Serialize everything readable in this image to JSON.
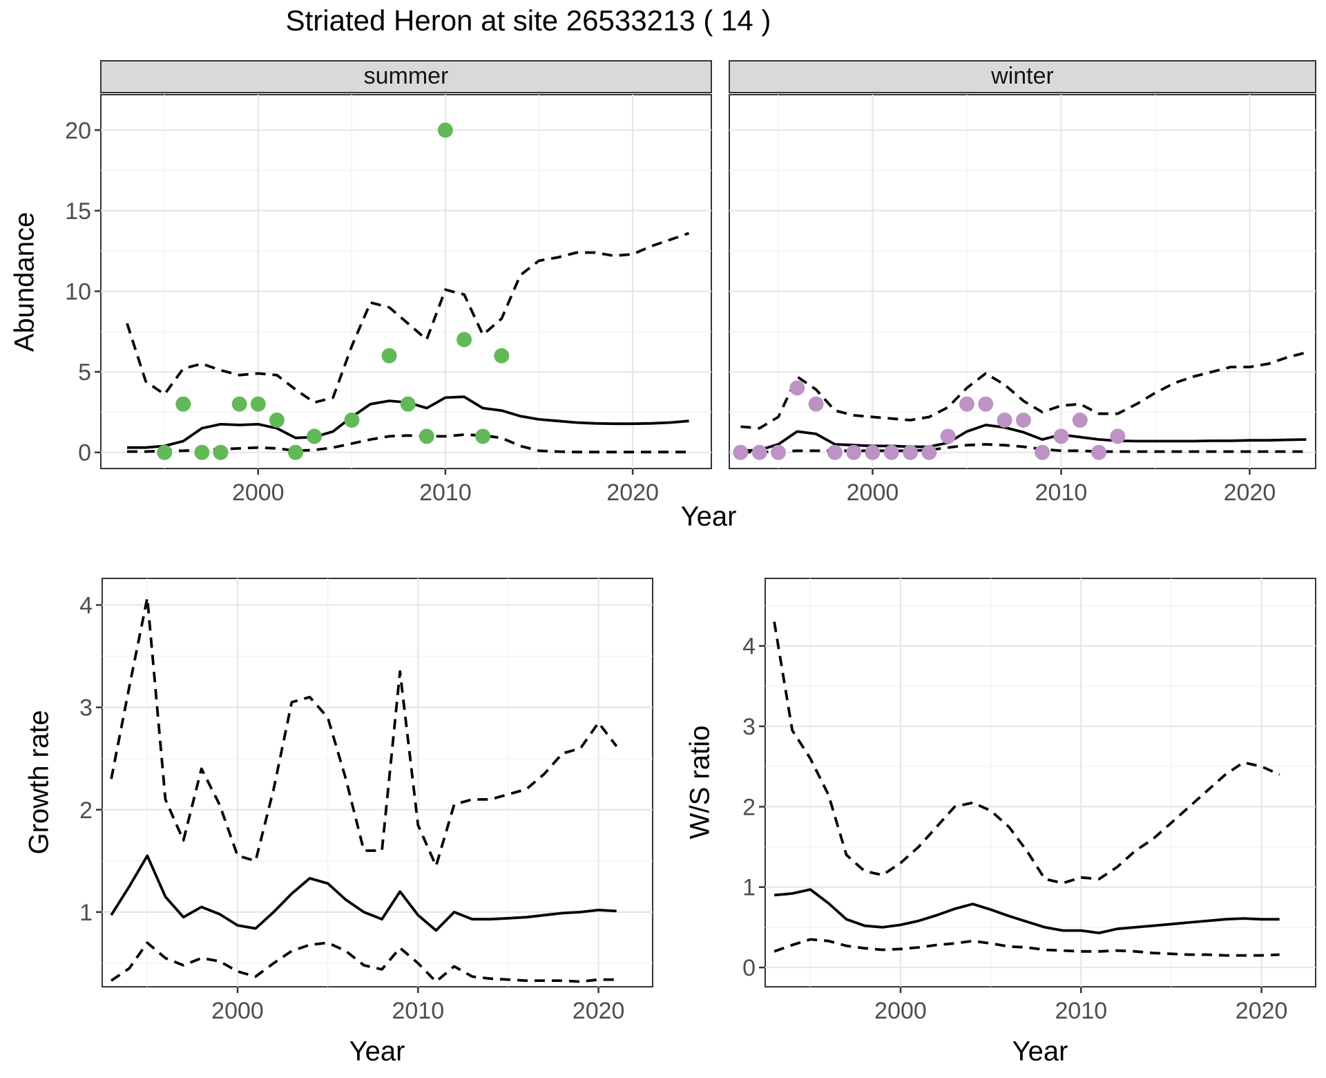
{
  "title": "Striated Heron at site 26533213 ( 14 )",
  "style": {
    "background": "#FFFFFF",
    "panel_border": "#333333",
    "strip_bg": "#D9D9D9",
    "strip_text_color": "#141414",
    "grid_major": "#E6E6E6",
    "grid_minor": "#F2F2F2",
    "tick_text_color": "#4D4D4D",
    "line_color": "#000000",
    "summer_point_color": "#63B858",
    "winter_point_color": "#BD93C6"
  },
  "chart_data": [
    {
      "type": "line+scatter",
      "facet": "summer",
      "ylabel": "Abundance",
      "xlabel": "Year",
      "point_color": "#63B858",
      "legend": "none",
      "grid": "on",
      "xlim": [
        1991.6,
        2024.2
      ],
      "ylim": [
        -1.0,
        22.2
      ],
      "x_ticks": {
        "labels": [
          "2000",
          "2010",
          "2020"
        ],
        "years": [
          2000,
          2010,
          2020
        ],
        "minor": [
          1995,
          2005,
          2015
        ]
      },
      "y_ticks": {
        "labels": [
          "0",
          "5",
          "10",
          "15",
          "20"
        ],
        "values": [
          0,
          5,
          10,
          15,
          20
        ],
        "minor": [
          2.5,
          7.5,
          12.5,
          17.5
        ]
      },
      "years": [
        1993,
        1994,
        1995,
        1996,
        1997,
        1998,
        1999,
        2000,
        2001,
        2002,
        2003,
        2004,
        2005,
        2006,
        2007,
        2008,
        2009,
        2010,
        2011,
        2012,
        2013,
        2014,
        2015,
        2016,
        2017,
        2018,
        2019,
        2020,
        2021,
        2022,
        2023
      ],
      "series": [
        {
          "name": "median (solid)",
          "style": "solid",
          "values": [
            0.3,
            0.3,
            0.4,
            0.7,
            1.5,
            1.75,
            1.7,
            1.75,
            1.5,
            0.9,
            0.95,
            1.3,
            2.2,
            3.0,
            3.2,
            3.1,
            2.75,
            3.4,
            3.45,
            2.75,
            2.6,
            2.25,
            2.05,
            1.95,
            1.85,
            1.8,
            1.78,
            1.78,
            1.8,
            1.85,
            1.95
          ]
        },
        {
          "name": "upper 95% CI (dashed)",
          "style": "dashed",
          "values": [
            8.0,
            4.4,
            3.6,
            5.2,
            5.5,
            5.1,
            4.8,
            4.9,
            4.8,
            3.9,
            3.1,
            3.4,
            6.6,
            9.3,
            9.0,
            8.0,
            7.0,
            10.1,
            9.8,
            7.3,
            8.3,
            11.0,
            11.9,
            12.1,
            12.4,
            12.4,
            12.2,
            12.3,
            12.8,
            13.2,
            13.6
          ]
        },
        {
          "name": "lower 95% CI (dashed)",
          "style": "dashed",
          "values": [
            0.05,
            0.05,
            0.1,
            0.1,
            0.15,
            0.2,
            0.25,
            0.3,
            0.25,
            0.1,
            0.15,
            0.3,
            0.55,
            0.8,
            1.0,
            1.05,
            1.0,
            1.0,
            1.1,
            1.05,
            0.9,
            0.4,
            0.1,
            0.05,
            0.02,
            0.02,
            0.02,
            0.02,
            0.02,
            0.02,
            0.02
          ]
        }
      ],
      "points": {
        "years": [
          1995,
          1996,
          1997,
          1998,
          1999,
          2000,
          2001,
          2002,
          2003,
          2005,
          2007,
          2008,
          2009,
          2010,
          2011,
          2012,
          2013
        ],
        "values": [
          0,
          3,
          0,
          0,
          3,
          3,
          2,
          0,
          1,
          2,
          6,
          3,
          1,
          20,
          7,
          1,
          6
        ]
      }
    },
    {
      "type": "line+scatter",
      "facet": "winter",
      "ylabel": "Abundance",
      "xlabel": "Year",
      "point_color": "#BD93C6",
      "legend": "none",
      "grid": "on",
      "xlim": [
        1992.4,
        2023.5
      ],
      "ylim": [
        -1.0,
        22.2
      ],
      "x_ticks": {
        "labels": [
          "2000",
          "2010",
          "2020"
        ],
        "years": [
          2000,
          2010,
          2020
        ],
        "minor": [
          1995,
          2005,
          2015
        ]
      },
      "y_ticks": {
        "labels": [],
        "values": [
          0,
          5,
          10,
          15,
          20
        ],
        "minor": [
          2.5,
          7.5,
          12.5,
          17.5
        ]
      },
      "years": [
        1993,
        1994,
        1995,
        1996,
        1997,
        1998,
        1999,
        2000,
        2001,
        2002,
        2003,
        2004,
        2005,
        2006,
        2007,
        2008,
        2009,
        2010,
        2011,
        2012,
        2013,
        2014,
        2015,
        2016,
        2017,
        2018,
        2019,
        2020,
        2021,
        2022,
        2023
      ],
      "series": [
        {
          "name": "median (solid)",
          "style": "solid",
          "values": [
            0.1,
            0.15,
            0.5,
            1.3,
            1.15,
            0.5,
            0.45,
            0.4,
            0.4,
            0.35,
            0.35,
            0.6,
            1.3,
            1.7,
            1.55,
            1.25,
            0.8,
            1.1,
            0.95,
            0.8,
            0.72,
            0.7,
            0.7,
            0.7,
            0.7,
            0.72,
            0.72,
            0.75,
            0.75,
            0.78,
            0.8
          ]
        },
        {
          "name": "upper 95% CI (dashed)",
          "style": "dashed",
          "values": [
            1.6,
            1.5,
            2.2,
            4.7,
            3.9,
            2.6,
            2.3,
            2.2,
            2.1,
            2.0,
            2.2,
            2.8,
            4.0,
            4.9,
            4.2,
            3.2,
            2.5,
            2.9,
            3.0,
            2.4,
            2.4,
            3.0,
            3.7,
            4.3,
            4.7,
            5.0,
            5.3,
            5.3,
            5.5,
            5.9,
            6.2
          ]
        },
        {
          "name": "lower 95% CI (dashed)",
          "style": "dashed",
          "values": [
            0.02,
            0.02,
            0.05,
            0.1,
            0.1,
            0.1,
            0.1,
            0.1,
            0.1,
            0.1,
            0.15,
            0.3,
            0.45,
            0.5,
            0.45,
            0.35,
            0.2,
            0.1,
            0.1,
            0.05,
            0.05,
            0.05,
            0.05,
            0.05,
            0.05,
            0.05,
            0.05,
            0.05,
            0.05,
            0.05,
            0.05
          ]
        }
      ],
      "points": {
        "years": [
          1993,
          1994,
          1995,
          1996,
          1997,
          1998,
          1999,
          2000,
          2001,
          2002,
          2003,
          2004,
          2005,
          2006,
          2007,
          2008,
          2009,
          2010,
          2011,
          2012,
          2013
        ],
        "values": [
          0,
          0,
          0,
          4,
          3,
          0,
          0,
          0,
          0,
          0,
          0,
          1,
          3,
          3,
          2,
          2,
          0,
          1,
          2,
          0,
          1
        ]
      }
    },
    {
      "type": "line",
      "facet": "",
      "ylabel": "Growth rate",
      "xlabel": "Year",
      "legend": "none",
      "grid": "on",
      "xlim": [
        1992.5,
        2023.0
      ],
      "ylim": [
        0.27,
        4.26
      ],
      "x_ticks": {
        "labels": [
          "2000",
          "2010",
          "2020"
        ],
        "years": [
          2000,
          2010,
          2020
        ],
        "minor": [
          1995,
          2005,
          2015
        ]
      },
      "y_ticks": {
        "labels": [
          "1",
          "2",
          "3",
          "4"
        ],
        "values": [
          1,
          2,
          3,
          4
        ],
        "minor": [
          0.5,
          1.5,
          2.5,
          3.5
        ]
      },
      "years": [
        1993,
        1994,
        1995,
        1996,
        1997,
        1998,
        1999,
        2000,
        2001,
        2002,
        2003,
        2004,
        2005,
        2006,
        2007,
        2008,
        2009,
        2010,
        2011,
        2012,
        2013,
        2014,
        2015,
        2016,
        2017,
        2018,
        2019,
        2020,
        2021
      ],
      "series": [
        {
          "name": "median (solid)",
          "style": "solid",
          "values": [
            0.97,
            1.25,
            1.55,
            1.15,
            0.95,
            1.05,
            0.98,
            0.87,
            0.84,
            1.0,
            1.18,
            1.33,
            1.28,
            1.12,
            1.0,
            0.93,
            1.2,
            0.97,
            0.82,
            1.0,
            0.93,
            0.93,
            0.94,
            0.95,
            0.97,
            0.99,
            1.0,
            1.02,
            1.01
          ]
        },
        {
          "name": "upper 95% CI (dashed)",
          "style": "dashed",
          "values": [
            2.3,
            3.2,
            4.07,
            2.1,
            1.7,
            2.4,
            2.05,
            1.55,
            1.5,
            2.2,
            3.05,
            3.1,
            2.9,
            2.3,
            1.6,
            1.6,
            3.35,
            1.85,
            1.45,
            2.05,
            2.1,
            2.1,
            2.15,
            2.2,
            2.35,
            2.55,
            2.6,
            2.85,
            2.62
          ]
        },
        {
          "name": "lower 95% CI (dashed)",
          "style": "dashed",
          "values": [
            0.33,
            0.45,
            0.7,
            0.55,
            0.48,
            0.55,
            0.52,
            0.42,
            0.37,
            0.5,
            0.62,
            0.68,
            0.7,
            0.62,
            0.48,
            0.44,
            0.65,
            0.5,
            0.32,
            0.47,
            0.37,
            0.35,
            0.34,
            0.33,
            0.33,
            0.33,
            0.32,
            0.34,
            0.34
          ]
        }
      ],
      "points": {
        "years": [],
        "values": []
      }
    },
    {
      "type": "line",
      "facet": "",
      "ylabel": "W/S ratio",
      "xlabel": "Year",
      "legend": "none",
      "grid": "on",
      "xlim": [
        1992.5,
        2023.0
      ],
      "ylim": [
        -0.24,
        4.84
      ],
      "x_ticks": {
        "labels": [
          "2000",
          "2010",
          "2020"
        ],
        "years": [
          2000,
          2010,
          2020
        ],
        "minor": [
          1995,
          2005,
          2015
        ]
      },
      "y_ticks": {
        "labels": [
          "0",
          "1",
          "2",
          "3",
          "4"
        ],
        "values": [
          0,
          1,
          2,
          3,
          4
        ],
        "minor": [
          0.5,
          1.5,
          2.5,
          3.5,
          4.5
        ]
      },
      "years": [
        1993,
        1994,
        1995,
        1996,
        1997,
        1998,
        1999,
        2000,
        2001,
        2002,
        2003,
        2004,
        2005,
        2006,
        2007,
        2008,
        2009,
        2010,
        2011,
        2012,
        2013,
        2014,
        2015,
        2016,
        2017,
        2018,
        2019,
        2020,
        2021
      ],
      "series": [
        {
          "name": "median (solid)",
          "style": "solid",
          "values": [
            0.9,
            0.92,
            0.97,
            0.8,
            0.6,
            0.52,
            0.5,
            0.53,
            0.58,
            0.65,
            0.73,
            0.79,
            0.72,
            0.64,
            0.57,
            0.5,
            0.46,
            0.46,
            0.43,
            0.48,
            0.5,
            0.52,
            0.54,
            0.56,
            0.58,
            0.6,
            0.61,
            0.6,
            0.6
          ]
        },
        {
          "name": "upper 95% CI (dashed)",
          "style": "dashed",
          "values": [
            4.3,
            2.95,
            2.6,
            2.15,
            1.4,
            1.2,
            1.15,
            1.3,
            1.5,
            1.75,
            2.0,
            2.05,
            1.95,
            1.75,
            1.45,
            1.1,
            1.05,
            1.12,
            1.1,
            1.25,
            1.45,
            1.6,
            1.8,
            2.0,
            2.2,
            2.4,
            2.55,
            2.5,
            2.4
          ]
        },
        {
          "name": "lower 95% CI (dashed)",
          "style": "dashed",
          "values": [
            0.2,
            0.28,
            0.35,
            0.33,
            0.27,
            0.24,
            0.22,
            0.23,
            0.25,
            0.28,
            0.3,
            0.33,
            0.3,
            0.26,
            0.25,
            0.22,
            0.21,
            0.2,
            0.2,
            0.21,
            0.2,
            0.18,
            0.17,
            0.16,
            0.16,
            0.15,
            0.15,
            0.15,
            0.16
          ]
        }
      ],
      "points": {
        "years": [],
        "values": []
      }
    }
  ]
}
